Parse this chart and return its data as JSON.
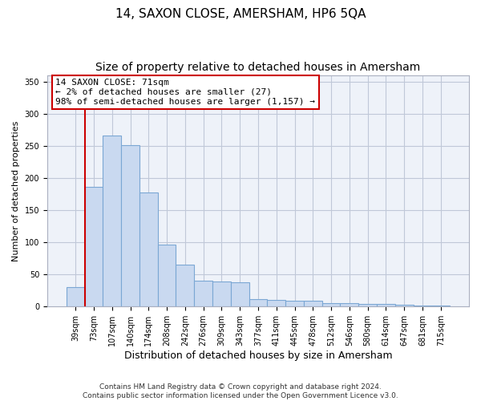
{
  "title": "14, SAXON CLOSE, AMERSHAM, HP6 5QA",
  "subtitle": "Size of property relative to detached houses in Amersham",
  "xlabel": "Distribution of detached houses by size in Amersham",
  "ylabel": "Number of detached properties",
  "categories": [
    "39sqm",
    "73sqm",
    "107sqm",
    "140sqm",
    "174sqm",
    "208sqm",
    "242sqm",
    "276sqm",
    "309sqm",
    "343sqm",
    "377sqm",
    "411sqm",
    "445sqm",
    "478sqm",
    "512sqm",
    "546sqm",
    "580sqm",
    "614sqm",
    "647sqm",
    "681sqm",
    "715sqm"
  ],
  "values": [
    30,
    187,
    267,
    252,
    178,
    96,
    65,
    40,
    39,
    38,
    12,
    10,
    9,
    9,
    6,
    5,
    4,
    4,
    3,
    2,
    2
  ],
  "bar_color": "#c9d9f0",
  "bar_edge_color": "#7ba7d4",
  "bar_linewidth": 0.8,
  "grid_color": "#c0c8d8",
  "bg_color": "#eef2f9",
  "annotation_box_text": "14 SAXON CLOSE: 71sqm\n← 2% of detached houses are smaller (27)\n98% of semi-detached houses are larger (1,157) →",
  "vline_color": "#cc0000",
  "vline_x": 0.5,
  "ylim": [
    0,
    360
  ],
  "yticks": [
    0,
    50,
    100,
    150,
    200,
    250,
    300,
    350
  ],
  "footnote": "Contains HM Land Registry data © Crown copyright and database right 2024.\nContains public sector information licensed under the Open Government Licence v3.0.",
  "title_fontsize": 11,
  "subtitle_fontsize": 10,
  "xlabel_fontsize": 9,
  "ylabel_fontsize": 8,
  "tick_fontsize": 7,
  "annot_fontsize": 8,
  "footnote_fontsize": 6.5
}
